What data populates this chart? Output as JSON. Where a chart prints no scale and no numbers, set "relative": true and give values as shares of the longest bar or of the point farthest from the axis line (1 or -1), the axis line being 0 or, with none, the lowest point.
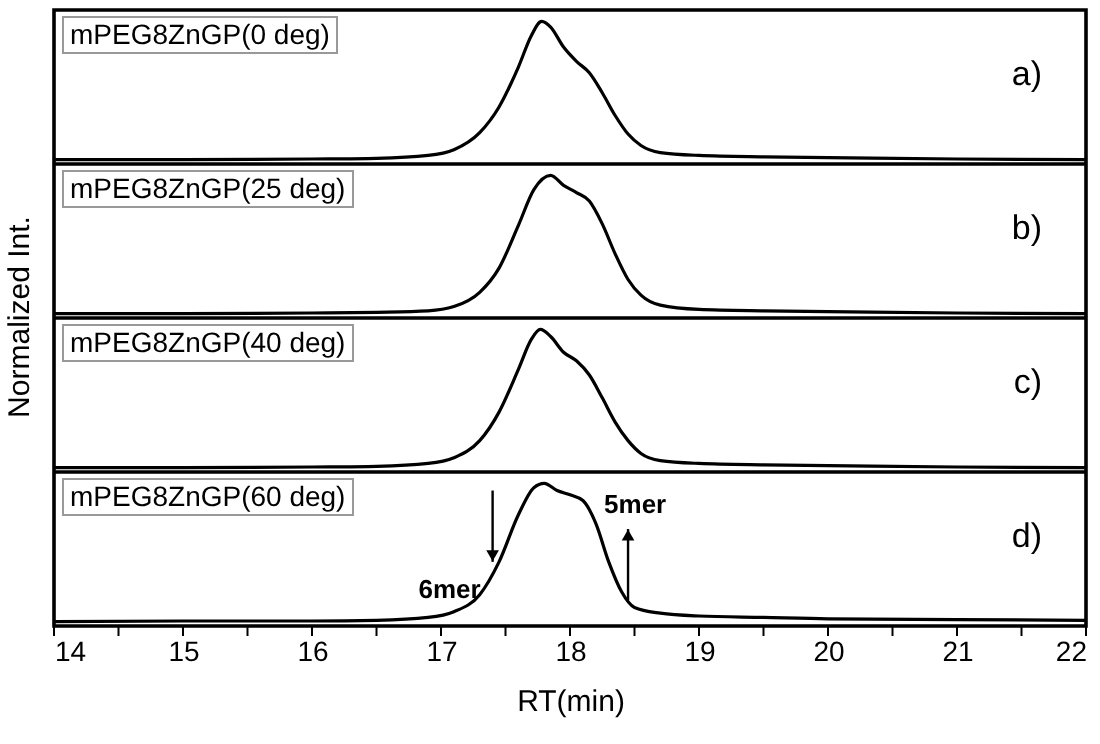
{
  "chart_data": [
    {
      "type": "line",
      "title": "mPEG8ZnGP(0 deg)",
      "relative": true,
      "xlim": [
        14,
        22
      ],
      "xticks": [
        14,
        15,
        16,
        17,
        18,
        19,
        20,
        21,
        22
      ],
      "tick_labels": false,
      "annotations": [
        "a)"
      ],
      "series": [
        {
          "color": "#000000",
          "x": [
            14,
            15,
            16,
            16.5,
            16.9,
            17.1,
            17.3,
            17.45,
            17.6,
            17.7,
            17.78,
            17.85,
            17.95,
            18.05,
            18.15,
            18.25,
            18.35,
            18.45,
            18.55,
            18.7,
            19,
            19.5,
            20,
            21,
            22
          ],
          "values": [
            0.03,
            0.03,
            0.035,
            0.04,
            0.06,
            0.1,
            0.22,
            0.4,
            0.68,
            0.9,
            1,
            0.96,
            0.82,
            0.72,
            0.64,
            0.5,
            0.34,
            0.21,
            0.13,
            0.08,
            0.06,
            0.05,
            0.045,
            0.035,
            0.03
          ]
        }
      ]
    },
    {
      "type": "line",
      "title": "mPEG8ZnGP(25 deg)",
      "relative": true,
      "xlim": [
        14,
        22
      ],
      "xticks": [
        14,
        15,
        16,
        17,
        18,
        19,
        20,
        21,
        22
      ],
      "tick_labels": false,
      "annotations": [
        "b)"
      ],
      "series": [
        {
          "color": "#000000",
          "x": [
            14,
            15,
            16,
            16.5,
            16.9,
            17.1,
            17.3,
            17.45,
            17.6,
            17.72,
            17.85,
            17.95,
            18.05,
            18.15,
            18.25,
            18.35,
            18.45,
            18.55,
            18.7,
            19,
            19.5,
            20,
            21,
            22
          ],
          "values": [
            0.03,
            0.03,
            0.035,
            0.04,
            0.05,
            0.08,
            0.18,
            0.35,
            0.65,
            0.9,
            1,
            0.93,
            0.88,
            0.82,
            0.66,
            0.45,
            0.27,
            0.16,
            0.09,
            0.06,
            0.05,
            0.045,
            0.035,
            0.03
          ]
        }
      ]
    },
    {
      "type": "line",
      "title": "mPEG8ZnGP(40 deg)",
      "relative": true,
      "xlim": [
        14,
        22
      ],
      "xticks": [
        14,
        15,
        16,
        17,
        18,
        19,
        20,
        21,
        22
      ],
      "tick_labels": false,
      "annotations": [
        "c)"
      ],
      "series": [
        {
          "color": "#000000",
          "x": [
            14,
            15,
            16,
            16.5,
            16.9,
            17.1,
            17.3,
            17.45,
            17.6,
            17.7,
            17.77,
            17.85,
            17.95,
            18.05,
            18.15,
            18.25,
            18.35,
            18.45,
            18.55,
            18.7,
            19,
            19.5,
            20,
            21,
            22
          ],
          "values": [
            0.03,
            0.03,
            0.035,
            0.04,
            0.06,
            0.1,
            0.22,
            0.42,
            0.72,
            0.93,
            1,
            0.95,
            0.84,
            0.78,
            0.68,
            0.52,
            0.35,
            0.22,
            0.13,
            0.08,
            0.06,
            0.05,
            0.045,
            0.035,
            0.03
          ]
        }
      ]
    },
    {
      "type": "line",
      "title": "mPEG8ZnGP(60 deg)",
      "relative": true,
      "xlim": [
        14,
        22
      ],
      "xticks": [
        14,
        {
          "value": 14.5,
          "label": null
        },
        15,
        {
          "value": 15.5,
          "label": null
        },
        16,
        {
          "value": 16.5,
          "label": null
        },
        17,
        {
          "value": 17.5,
          "label": null
        },
        18,
        {
          "value": 18.5,
          "label": null
        },
        19,
        {
          "value": 19.5,
          "label": null
        },
        20,
        {
          "value": 20.5,
          "label": null
        },
        21,
        {
          "value": 21.5,
          "label": null
        },
        22
      ],
      "xlabel": "RT(min)",
      "ylabel": "Normalized Int.",
      "tick_labels": "x",
      "annotations": [
        "d)",
        {
          "text": "6mer",
          "x": 17.4,
          "y": 0.45
        },
        {
          "text": "5mer",
          "x": 18.45,
          "y": 0.18
        }
      ],
      "series": [
        {
          "color": "#000000",
          "x": [
            14,
            15,
            16,
            16.5,
            16.9,
            17.1,
            17.3,
            17.45,
            17.6,
            17.72,
            17.8,
            17.9,
            18,
            18.1,
            18.2,
            18.3,
            18.4,
            18.5,
            18.7,
            19,
            19.5,
            20,
            21,
            22
          ],
          "values": [
            0.03,
            0.035,
            0.035,
            0.04,
            0.06,
            0.1,
            0.22,
            0.45,
            0.78,
            0.97,
            1,
            0.95,
            0.92,
            0.88,
            0.72,
            0.45,
            0.24,
            0.13,
            0.09,
            0.07,
            0.06,
            0.05,
            0.045,
            0.04
          ]
        }
      ]
    }
  ]
}
